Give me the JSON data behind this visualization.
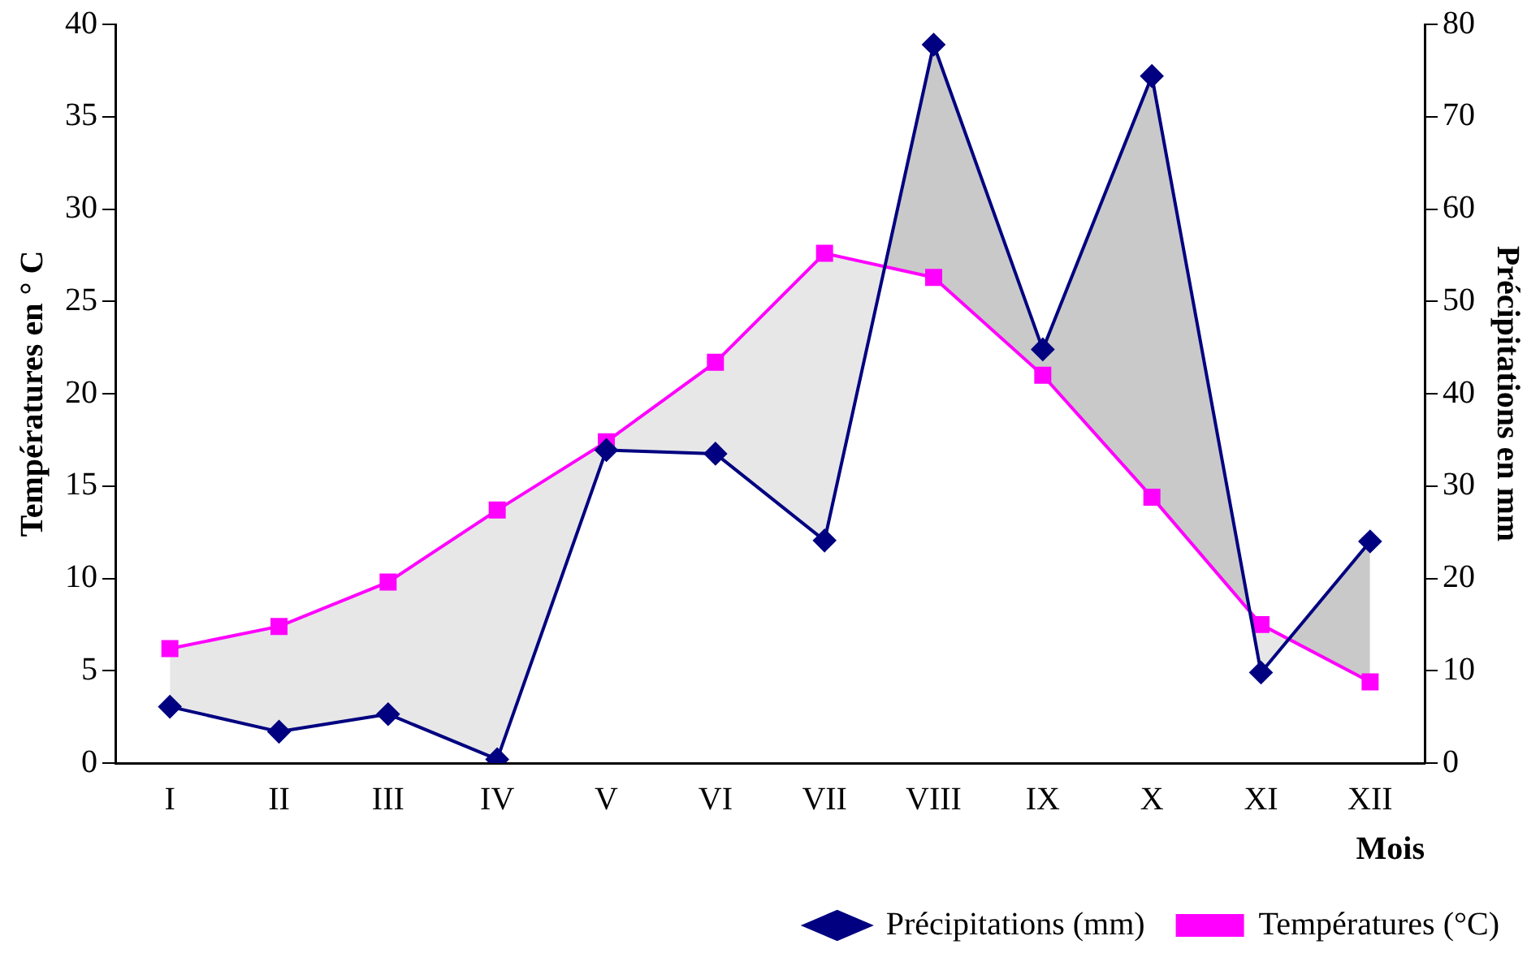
{
  "chart_data": {
    "type": "line",
    "xlabel": "Mois",
    "ylabel": "Températures en ° C",
    "y2label": "Précipitations en mm",
    "categories": [
      "I",
      "II",
      "III",
      "IV",
      "V",
      "VI",
      "VII",
      "VIII",
      "IX",
      "X",
      "XI",
      "XII"
    ],
    "series": [
      {
        "name": "Températures (°C)",
        "color": "#ff00ff",
        "marker": "square",
        "values": [
          6.2,
          7.4,
          9.8,
          13.7,
          17.4,
          21.7,
          27.6,
          26.3,
          21.0,
          14.4,
          7.5,
          4.4
        ]
      },
      {
        "name": "Précipitations (mm)",
        "color": "#000080",
        "marker": "diamond",
        "axis": "y2",
        "values": [
          6.1,
          3.4,
          5.3,
          0.4,
          33.9,
          33.5,
          24.1,
          77.8,
          44.8,
          74.4,
          9.8,
          24.0
        ]
      }
    ],
    "ylim": [
      0,
      40
    ],
    "yticks": [
      0,
      5,
      10,
      15,
      20,
      25,
      30,
      35,
      40
    ],
    "y2lim": [
      0,
      80
    ],
    "y2ticks": [
      0,
      10,
      20,
      30,
      40,
      50,
      60,
      70,
      80
    ],
    "grid": false,
    "legend": "bottom right",
    "line_style": "solid"
  }
}
